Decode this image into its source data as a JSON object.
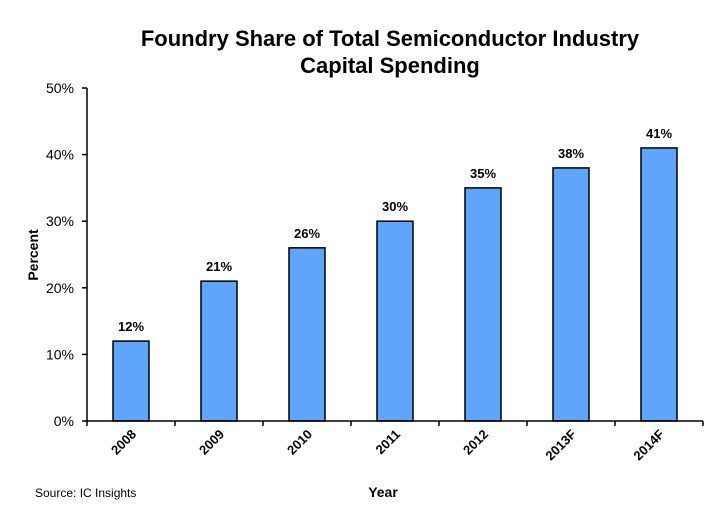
{
  "chart_data": {
    "type": "bar",
    "title_line1": "Foundry Share of Total Semiconductor Industry",
    "title_line2": "Capital Spending",
    "xlabel": "Year",
    "ylabel": "Percent",
    "categories": [
      "2008",
      "2009",
      "2010",
      "2011",
      "2012",
      "2013F",
      "2014F"
    ],
    "values": [
      12,
      21,
      26,
      30,
      35,
      38,
      41
    ],
    "data_labels": [
      "12%",
      "21%",
      "26%",
      "30%",
      "35%",
      "38%",
      "41%"
    ],
    "ylim": [
      0,
      50
    ],
    "yticks": [
      0,
      10,
      20,
      30,
      40,
      50
    ],
    "ytick_labels": [
      "0%",
      "10%",
      "20%",
      "30%",
      "40%",
      "50%"
    ],
    "grid": false,
    "bar_color": "#5fa5fb",
    "source": "Source: IC Insights"
  }
}
